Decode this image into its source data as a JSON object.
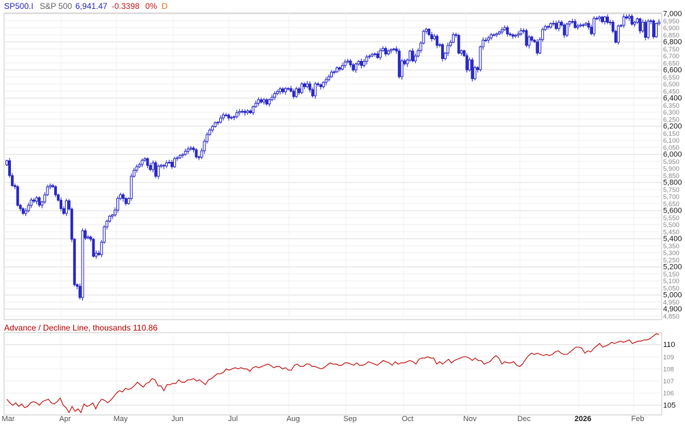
{
  "header": {
    "symbol": "SP500.I",
    "name": "S&P 500",
    "last": "6,941.47",
    "change": "-0.3398",
    "change_pct": "0%",
    "period": "D"
  },
  "colors": {
    "price": "#2b2bc8",
    "adl": "#c8201e",
    "grid": "#e6e6e6",
    "axis_text": "#444444"
  },
  "chart_data": [
    {
      "type": "candlestick",
      "title": "",
      "series_name": "S&P 500",
      "ylim": [
        4825,
        7005
      ],
      "yticks": [
        4850,
        4900,
        4950,
        5000,
        5050,
        5100,
        5150,
        5200,
        5250,
        5300,
        5350,
        5400,
        5450,
        5500,
        5550,
        5600,
        5650,
        5700,
        5750,
        5800,
        5850,
        5900,
        5950,
        6000,
        6050,
        6100,
        6150,
        6200,
        6250,
        6300,
        6350,
        6400,
        6450,
        6500,
        6550,
        6600,
        6650,
        6700,
        6750,
        6800,
        6850,
        6900,
        6950,
        7000
      ],
      "ytick_labels": [
        "4,850",
        "4,900",
        "4,950",
        "5,000",
        "5,050",
        "5,100",
        "5,150",
        "5,200",
        "5,250",
        "5,300",
        "5,350",
        "5,400",
        "5,450",
        "5,500",
        "5,550",
        "5,600",
        "5,650",
        "5,700",
        "5,750",
        "5,800",
        "5,850",
        "5,900",
        "5,950",
        "6,000",
        "6,050",
        "6,100",
        "6,150",
        "6,200",
        "6,250",
        "6,300",
        "6,350",
        "6,400",
        "6,450",
        "6,500",
        "6,550",
        "6,600",
        "6,650",
        "6,700",
        "6,750",
        "6,800",
        "6,850",
        "6,900",
        "6,950",
        "7,000"
      ],
      "major_yticks": [
        4900,
        5000,
        5200,
        5400,
        5600,
        5800,
        6000,
        6200,
        6400,
        6600,
        6800,
        7000
      ],
      "closes": [
        5955,
        5849,
        5778,
        5770,
        5638,
        5614,
        5580,
        5599,
        5638,
        5675,
        5667,
        5692,
        5639,
        5662,
        5712,
        5768,
        5778,
        5770,
        5712,
        5674,
        5614,
        5580,
        5670,
        5611,
        5396,
        5074,
        5062,
        4982,
        5457,
        5405,
        5412,
        5396,
        5275,
        5297,
        5287,
        5375,
        5484,
        5525,
        5560,
        5569,
        5604,
        5687,
        5713,
        5686,
        5650,
        5686,
        5844,
        5887,
        5912,
        5928,
        5958,
        5970,
        5921,
        5892,
        5940,
        5844,
        5916,
        5922,
        5917,
        5939,
        5944,
        5912,
        5970,
        5976,
        5992,
        6000,
        6022,
        6038,
        6045,
        6033,
        5982,
        5980,
        6025,
        6092,
        6141,
        6173,
        6198,
        6225,
        6229,
        6259,
        6280,
        6279,
        6259,
        6263,
        6268,
        6297,
        6305,
        6306,
        6297,
        6309,
        6296,
        6339,
        6363,
        6389,
        6372,
        6389,
        6358,
        6389,
        6406,
        6432,
        6446,
        6466,
        6445,
        6469,
        6468,
        6449,
        6411,
        6466,
        6439,
        6502,
        6481,
        6501,
        6460,
        6416,
        6502,
        6495,
        6481,
        6512,
        6532,
        6552,
        6585,
        6587,
        6616,
        6606,
        6631,
        6657,
        6664,
        6637,
        6600,
        6643,
        6662,
        6632,
        6661,
        6693,
        6699,
        6711,
        6715,
        6688,
        6738,
        6753,
        6714,
        6736,
        6745,
        6750,
        6735,
        6552,
        6665,
        6644,
        6671,
        6735,
        6664,
        6699,
        6738,
        6791,
        6875,
        6890,
        6852,
        6822,
        6840,
        6775,
        6780,
        6681,
        6720,
        6775,
        6797,
        6851,
        6846,
        6720,
        6737,
        6702,
        6600,
        6672,
        6538,
        6617,
        6602,
        6765,
        6812,
        6813,
        6828,
        6850,
        6849,
        6857,
        6870,
        6886,
        6901,
        6856,
        6850,
        6840,
        6847,
        6856,
        6880,
        6880,
        6775,
        6835,
        6812,
        6800,
        6721,
        6816,
        6888,
        6909,
        6905,
        6930,
        6932,
        6895,
        6940,
        6920,
        6848,
        6927,
        6944,
        6945,
        6902,
        6913,
        6920,
        6921,
        6932,
        6905,
        6858,
        6967,
        6966,
        6976,
        6944,
        6977,
        6939,
        6940,
        6875,
        6797,
        6913,
        6917,
        6978,
        6969,
        6982,
        6926,
        6939,
        6964,
        6878,
        6940,
        6832,
        6947,
        6950,
        6836,
        6930,
        6941
      ]
    },
    {
      "type": "line",
      "title": "Advance / Decline Line, thousands 110.86",
      "series_name": "Advance / Decline Line, thousands",
      "ylim": [
        104.2,
        111.0
      ],
      "yticks": [
        105,
        106,
        107,
        108,
        109,
        110
      ],
      "ytick_labels": [
        "105",
        "106",
        "107",
        "108",
        "109",
        "110"
      ],
      "major_yticks": [
        105,
        110
      ],
      "values": [
        105.5,
        105.2,
        105.0,
        105.2,
        104.9,
        105.1,
        104.8,
        104.9,
        105.2,
        105.3,
        105.2,
        105.0,
        105.3,
        105.4,
        105.5,
        105.2,
        105.1,
        105.3,
        105.6,
        105.0,
        104.8,
        104.4,
        104.9,
        104.5,
        104.7,
        104.4,
        105.1,
        104.9,
        105.0,
        105.2,
        104.7,
        105.2,
        105.5,
        105.4,
        105.2,
        105.4,
        105.7,
        106.0,
        106.2,
        106.1,
        106.4,
        106.3,
        106.4,
        106.6,
        106.9,
        106.7,
        106.5,
        106.8,
        106.9,
        107.2,
        107.1,
        106.6,
        106.6,
        106.2,
        106.7,
        106.7,
        106.8,
        106.8,
        107.1,
        106.9,
        106.9,
        107.1,
        107.1,
        107.2,
        107.0,
        107.1,
        106.9,
        106.7,
        107.1,
        107.2,
        107.4,
        107.6,
        107.6,
        107.7,
        108.0,
        107.9,
        108.0,
        108.1,
        108.0,
        108.1,
        108.0,
        108.0,
        107.8,
        108.1,
        108.2,
        108.1,
        108.2,
        108.3,
        108.4,
        108.3,
        108.1,
        108.2,
        108.2,
        108.0,
        108.1,
        107.9,
        107.9,
        108.3,
        108.4,
        108.2,
        108.2,
        108.4,
        108.4,
        108.2,
        108.2,
        108.1,
        108.0,
        108.1,
        108.3,
        108.5,
        108.4,
        108.4,
        108.3,
        108.3,
        108.5,
        108.5,
        108.4,
        108.3,
        108.5,
        108.3,
        108.3,
        108.4,
        108.6,
        108.5,
        108.4,
        108.3,
        108.5,
        108.7,
        108.6,
        108.5,
        108.3,
        108.6,
        108.4,
        108.5,
        108.5,
        108.6,
        108.7,
        108.6,
        108.4,
        108.8,
        108.9,
        108.9,
        109.0,
        108.9,
        108.9,
        108.4,
        108.6,
        108.4,
        108.6,
        108.8,
        108.5,
        108.7,
        108.8,
        108.9,
        109.0,
        109.0,
        108.9,
        108.7,
        108.9,
        108.7,
        108.7,
        108.4,
        108.5,
        108.6,
        108.9,
        109.1,
        108.9,
        108.4,
        108.6,
        108.5,
        108.5,
        108.6,
        108.3,
        108.2,
        108.4,
        108.8,
        109.1,
        109.3,
        109.2,
        109.3,
        109.2,
        109.1,
        109.2,
        109.1,
        109.2,
        109.4,
        109.5,
        109.3,
        109.2,
        109.2,
        109.4,
        109.6,
        109.8,
        109.8,
        109.7,
        109.3,
        109.5,
        109.4,
        109.7,
        109.9,
        110.1,
        109.8,
        109.9,
        110.0,
        110.2,
        110.1,
        110.2,
        110.3,
        110.2,
        110.3,
        110.4,
        110.1,
        110.2,
        110.3,
        110.3,
        110.4,
        110.4,
        110.5,
        110.7,
        110.9,
        110.86
      ]
    }
  ],
  "x_axis": {
    "labels": [
      "Mar",
      "Apr",
      "May",
      "Jun",
      "Jul",
      "Aug",
      "Sep",
      "Oct",
      "Nov",
      "Dec",
      "2026",
      "Feb"
    ],
    "bold_labels": [
      "2026"
    ]
  }
}
